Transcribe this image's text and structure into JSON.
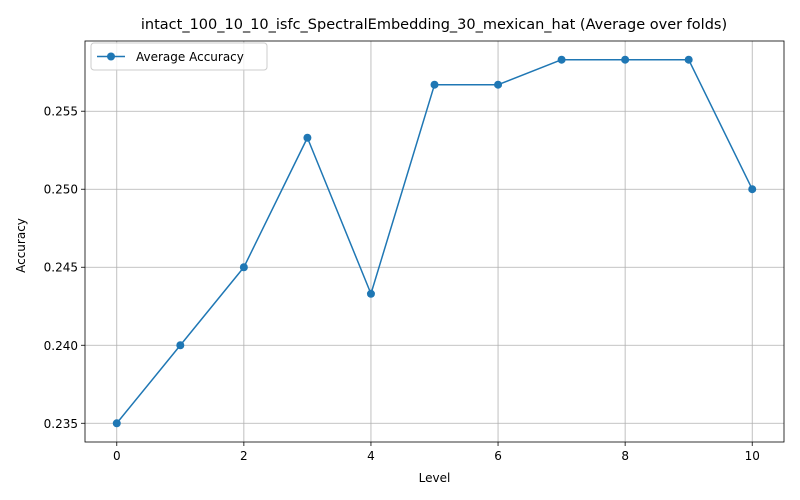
{
  "chart_data": {
    "type": "line",
    "title": "intact_100_10_10_isfc_SpectralEmbedding_30_mexican_hat (Average over folds)",
    "xlabel": "Level",
    "ylabel": "Accuracy",
    "xlim": [
      -0.5,
      10.5
    ],
    "ylim": [
      0.2338,
      0.2595
    ],
    "xticks": [
      0,
      2,
      4,
      6,
      8,
      10
    ],
    "xtick_labels": [
      "0",
      "2",
      "4",
      "6",
      "8",
      "10"
    ],
    "yticks": [
      0.235,
      0.24,
      0.245,
      0.25,
      0.255
    ],
    "ytick_labels": [
      "0.235",
      "0.240",
      "0.245",
      "0.250",
      "0.255"
    ],
    "grid": true,
    "legend_position": "top-left",
    "series": [
      {
        "name": "Average Accuracy",
        "color": "#1f77b4",
        "marker": "circle",
        "x": [
          0,
          1,
          2,
          3,
          4,
          5,
          6,
          7,
          8,
          9,
          10
        ],
        "y": [
          0.235,
          0.24,
          0.245,
          0.2533,
          0.2433,
          0.2567,
          0.2567,
          0.2583,
          0.2583,
          0.2583,
          0.25
        ]
      }
    ]
  }
}
